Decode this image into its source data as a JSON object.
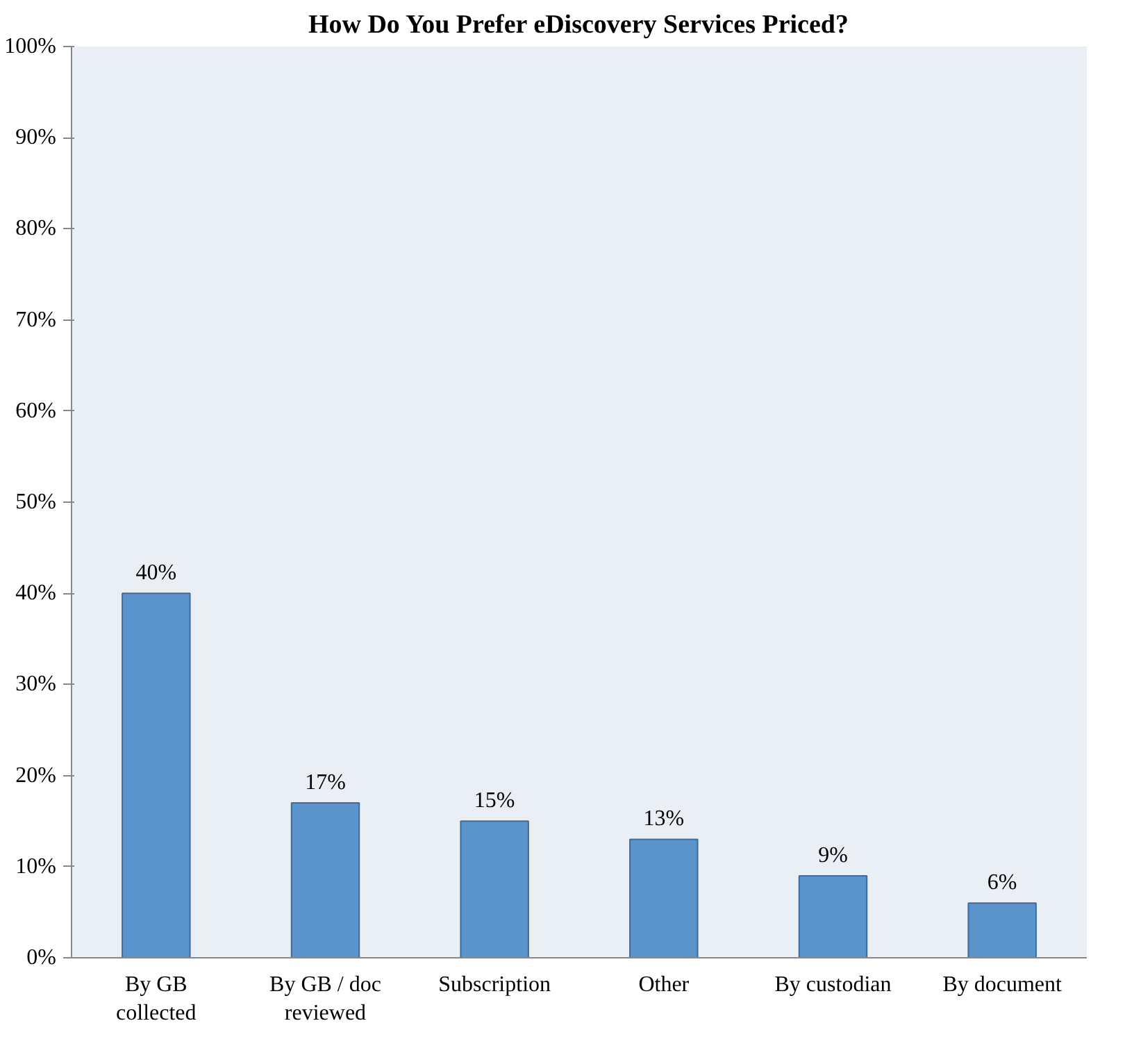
{
  "chart_data": {
    "type": "bar",
    "title": "How Do You Prefer eDiscovery Services Priced?",
    "categories": [
      "By GB collected",
      "By GB / doc reviewed",
      "Subscription",
      "Other",
      "By custodian",
      "By document"
    ],
    "values": [
      40,
      17,
      15,
      13,
      9,
      6
    ],
    "value_labels": [
      "40%",
      "17%",
      "15%",
      "13%",
      "9%",
      "6%"
    ],
    "color": "#5b93cd",
    "ylim": [
      0,
      100
    ],
    "yticks": [
      {
        "value": 0,
        "label": "0%"
      },
      {
        "value": 10,
        "label": "10%"
      },
      {
        "value": 20,
        "label": "20%"
      },
      {
        "value": 30,
        "label": "30%"
      },
      {
        "value": 40,
        "label": "40%"
      },
      {
        "value": 50,
        "label": "50%"
      },
      {
        "value": 60,
        "label": "60%"
      },
      {
        "value": 70,
        "label": "70%"
      },
      {
        "value": 80,
        "label": "80%"
      },
      {
        "value": 90,
        "label": "90%"
      },
      {
        "value": 100,
        "label": "100%"
      }
    ],
    "grid": false
  }
}
